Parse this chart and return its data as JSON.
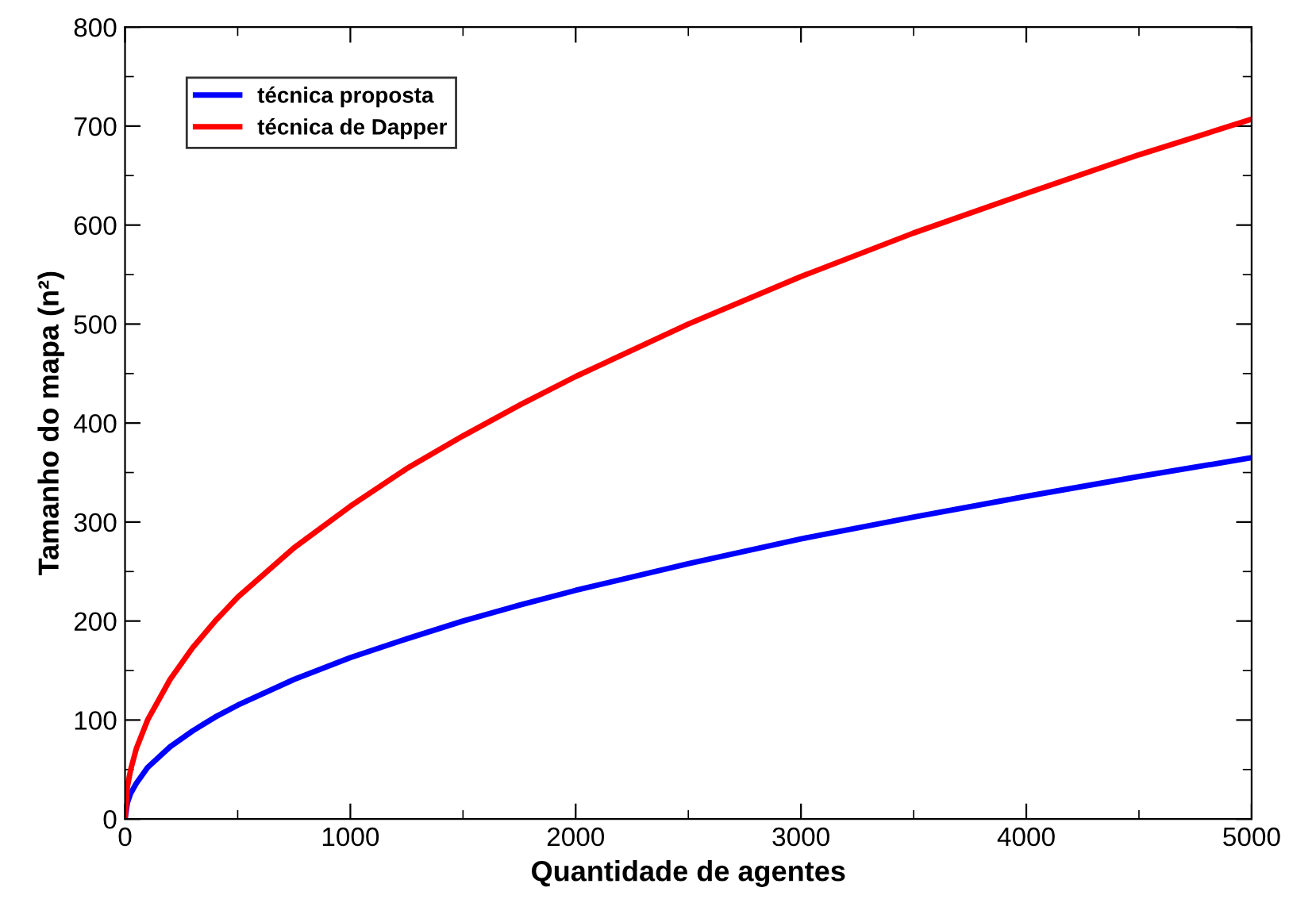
{
  "chart_data": {
    "type": "line",
    "xlabel": "Quantidade de agentes",
    "ylabel": "Tamanho do mapa (n²)",
    "x": [
      0,
      10,
      25,
      50,
      100,
      200,
      300,
      400,
      500,
      750,
      1000,
      1250,
      1500,
      1750,
      2000,
      2500,
      3000,
      3500,
      4000,
      4500,
      5000
    ],
    "series": [
      {
        "name": "técnica proposta",
        "color": "#0000ff",
        "values": [
          0,
          16,
          26,
          36,
          52,
          73,
          89,
          103,
          115,
          141,
          163,
          182,
          200,
          216,
          231,
          258,
          283,
          305,
          326,
          346,
          365
        ]
      },
      {
        "name": "técnica de Dapper",
        "color": "#ff0000",
        "values": [
          0,
          32,
          50,
          71,
          100,
          141,
          173,
          200,
          224,
          274,
          316,
          354,
          387,
          418,
          447,
          500,
          548,
          592,
          632,
          671,
          707
        ]
      }
    ],
    "xlim": [
      0,
      5000
    ],
    "ylim": [
      0,
      800
    ],
    "xticks": [
      0,
      1000,
      2000,
      3000,
      4000,
      5000
    ],
    "yticks": [
      0,
      100,
      200,
      300,
      400,
      500,
      600,
      700,
      800
    ],
    "legend": "top left",
    "grid": false,
    "marker": "none",
    "line_style": "solid"
  }
}
